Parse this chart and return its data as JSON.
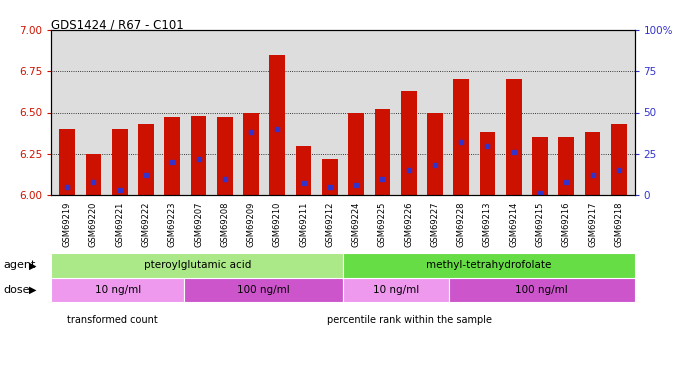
{
  "title": "GDS1424 / R67 - C101",
  "samples": [
    "GSM69219",
    "GSM69220",
    "GSM69221",
    "GSM69222",
    "GSM69223",
    "GSM69207",
    "GSM69208",
    "GSM69209",
    "GSM69210",
    "GSM69211",
    "GSM69212",
    "GSM69224",
    "GSM69225",
    "GSM69226",
    "GSM69227",
    "GSM69228",
    "GSM69213",
    "GSM69214",
    "GSM69215",
    "GSM69216",
    "GSM69217",
    "GSM69218"
  ],
  "transformed_counts": [
    6.4,
    6.25,
    6.4,
    6.43,
    6.47,
    6.48,
    6.47,
    6.5,
    6.85,
    6.3,
    6.22,
    6.5,
    6.52,
    6.63,
    6.5,
    6.7,
    6.38,
    6.7,
    6.35,
    6.35,
    6.38,
    6.43
  ],
  "percentile_ranks": [
    5,
    8,
    3,
    12,
    20,
    22,
    10,
    38,
    40,
    7,
    5,
    6,
    10,
    15,
    18,
    32,
    30,
    26,
    1,
    8,
    12,
    15
  ],
  "bar_color": "#cc1100",
  "marker_color": "#3333cc",
  "ylim_left": [
    6.0,
    7.0
  ],
  "ylim_right": [
    0,
    100
  ],
  "yticks_left": [
    6.0,
    6.25,
    6.5,
    6.75,
    7.0
  ],
  "yticks_right": [
    0,
    25,
    50,
    75,
    100
  ],
  "grid_values": [
    6.25,
    6.5,
    6.75
  ],
  "agent_groups": [
    {
      "label": "pteroylglutamic acid",
      "start": 0,
      "end": 11,
      "color": "#aae888"
    },
    {
      "label": "methyl-tetrahydrofolate",
      "start": 11,
      "end": 22,
      "color": "#66dd44"
    }
  ],
  "dose_groups": [
    {
      "label": "10 ng/ml",
      "start": 0,
      "end": 5,
      "color": "#ee99ee"
    },
    {
      "label": "100 ng/ml",
      "start": 5,
      "end": 11,
      "color": "#cc55cc"
    },
    {
      "label": "10 ng/ml",
      "start": 11,
      "end": 15,
      "color": "#ee99ee"
    },
    {
      "label": "100 ng/ml",
      "start": 15,
      "end": 22,
      "color": "#cc55cc"
    }
  ],
  "agent_label": "agent",
  "dose_label": "dose",
  "legend_items": [
    {
      "label": "transformed count",
      "color": "#cc1100",
      "marker": "s"
    },
    {
      "label": "percentile rank within the sample",
      "color": "#3333cc",
      "marker": "s"
    }
  ],
  "bar_width": 0.6,
  "chart_bg": "#dddddd",
  "tick_color_left": "#cc1100",
  "tick_color_right": "#3333cc"
}
